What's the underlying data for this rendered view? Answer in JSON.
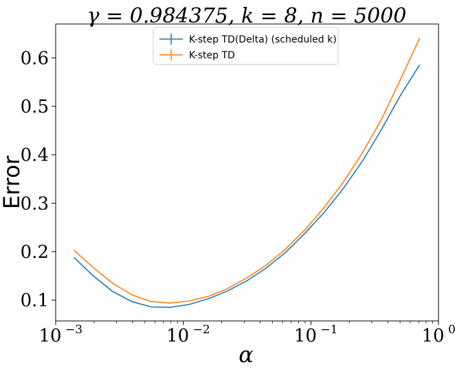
{
  "chart_data": {
    "type": "line",
    "title": "γ = 0.984375, k = 8, n = 5000",
    "xlabel": "α",
    "ylabel": "Error",
    "xscale": "log",
    "xlim": [
      0.001,
      1
    ],
    "ylim": [
      0.057,
      0.67
    ],
    "xticks": [
      {
        "value": 0.001,
        "base": "10",
        "exp": "−3"
      },
      {
        "value": 0.01,
        "base": "10",
        "exp": "−2"
      },
      {
        "value": 0.1,
        "base": "10",
        "exp": "−1"
      },
      {
        "value": 1,
        "base": "10",
        "exp": "0"
      }
    ],
    "yticks": [
      0.1,
      0.2,
      0.3,
      0.4,
      0.5,
      0.6
    ],
    "ytick_labels": [
      "0.1",
      "0.2",
      "0.3",
      "0.4",
      "0.5",
      "0.6"
    ],
    "grid": false,
    "legend_position": "upper center",
    "x": [
      0.00139,
      0.00197,
      0.00279,
      0.00394,
      0.00557,
      0.00788,
      0.0111,
      0.0158,
      0.0223,
      0.0315,
      0.0446,
      0.063,
      0.0891,
      0.126,
      0.178,
      0.252,
      0.357,
      0.504,
      0.713
    ],
    "series": [
      {
        "name": "K-step TD(Delta) (scheduled k)",
        "color": "#1f77b4",
        "values": [
          0.188,
          0.15,
          0.118,
          0.097,
          0.086,
          0.085,
          0.091,
          0.103,
          0.119,
          0.14,
          0.166,
          0.198,
          0.237,
          0.28,
          0.329,
          0.386,
          0.452,
          0.523,
          0.586
        ]
      },
      {
        "name": "K-step TD",
        "color": "#ff7f0e",
        "values": [
          0.203,
          0.167,
          0.135,
          0.111,
          0.097,
          0.094,
          0.098,
          0.108,
          0.124,
          0.146,
          0.172,
          0.205,
          0.244,
          0.29,
          0.342,
          0.403,
          0.473,
          0.556,
          0.641
        ]
      }
    ]
  }
}
